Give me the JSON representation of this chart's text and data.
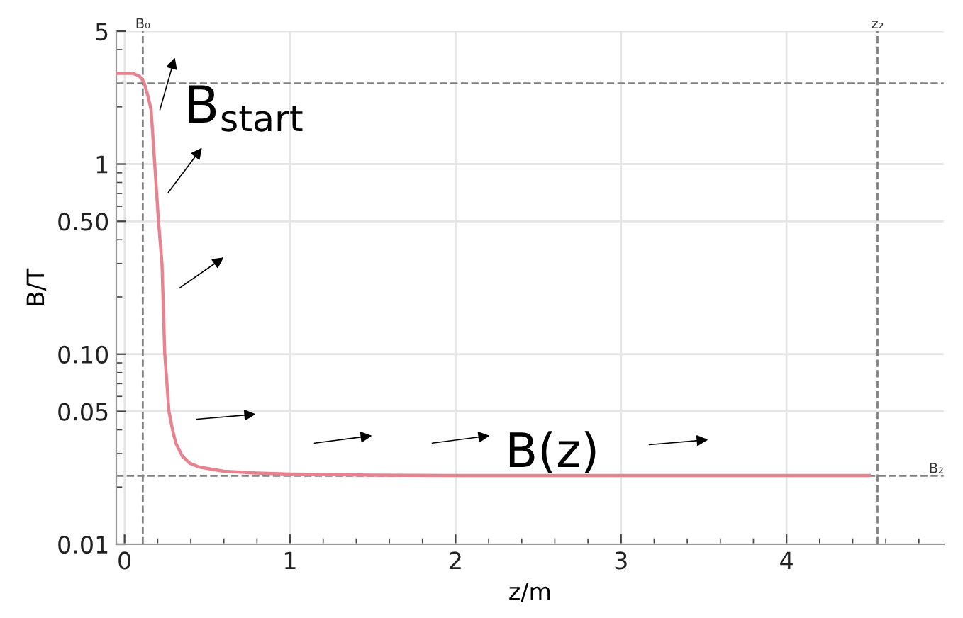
{
  "chart_data": {
    "type": "line",
    "xlabel": "z/m",
    "ylabel": "B/T",
    "series": [
      {
        "color": "#e8828f",
        "x": [
          -0.05,
          0.0,
          0.05,
          0.09,
          0.117,
          0.14,
          0.16,
          0.184,
          0.205,
          0.226,
          0.243,
          0.268,
          0.29,
          0.31,
          0.35,
          0.393,
          0.45,
          0.6,
          0.8,
          1.0,
          1.5,
          2.0,
          3.0,
          4.0,
          4.5
        ],
        "values": [
          3.0,
          3.0,
          3.0,
          2.9,
          2.7,
          2.3,
          1.94,
          0.95,
          0.5,
          0.3,
          0.1,
          0.05,
          0.04,
          0.034,
          0.029,
          0.0267,
          0.0255,
          0.0242,
          0.0237,
          0.0234,
          0.0231,
          0.023,
          0.023,
          0.023,
          0.023
        ]
      }
    ],
    "xlim": [
      -0.05,
      4.95
    ],
    "xticks": [
      0,
      1,
      2,
      3,
      4
    ],
    "ylim": [
      0.01,
      5
    ],
    "yticks": [
      0.01,
      0.05,
      {
        "value": 0.1,
        "label": "0.10"
      },
      {
        "value": 0.5,
        "label": "0.50"
      },
      1,
      5
    ],
    "log": "y",
    "grid": true,
    "line_style": "solid",
    "marker": "none",
    "ref_lines": [
      {
        "axis": "x",
        "value": 0.11,
        "label": "B₀",
        "color": "#808080",
        "line_style": "dashed"
      },
      {
        "axis": "y",
        "value": 2.66,
        "label": null,
        "color": "#808080",
        "line_style": "dashed"
      },
      {
        "axis": "x",
        "value": 4.55,
        "label": "z₂",
        "color": "#808080",
        "line_style": "dashed"
      },
      {
        "axis": "y",
        "value": 0.0229,
        "label": "B₂",
        "color": "#808080",
        "line_style": "dashed"
      }
    ],
    "annotations": [
      "B$_{start}$",
      "B(z)"
    ]
  }
}
